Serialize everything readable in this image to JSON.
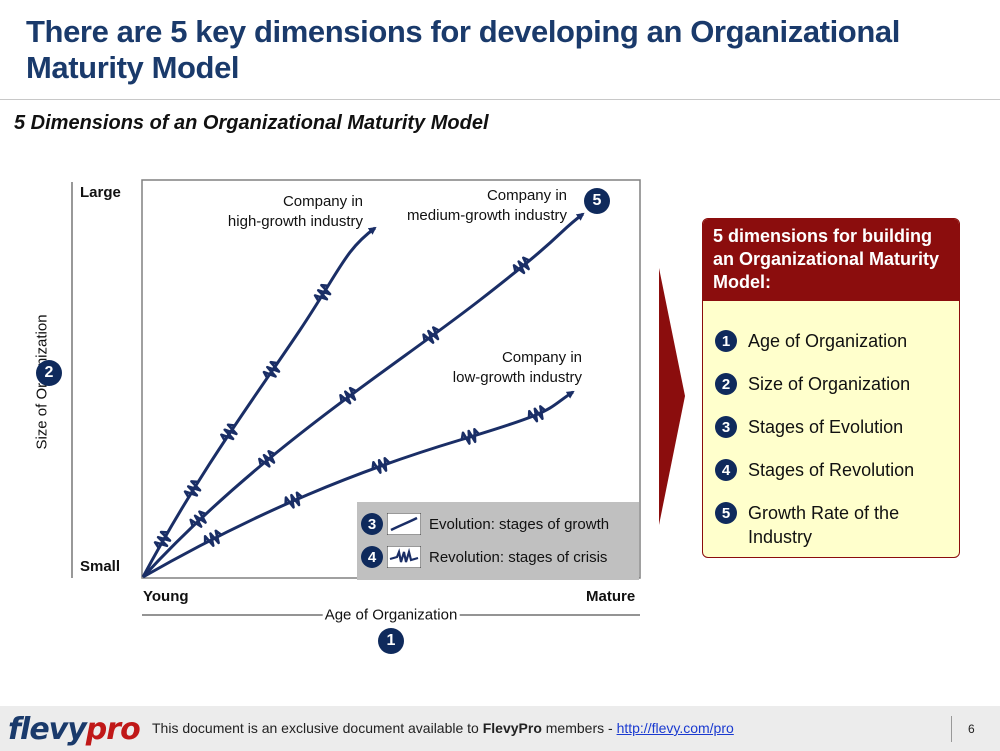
{
  "header": {
    "title": "There are 5 key dimensions for developing an Organizational Maturity Model",
    "subtitle": "5 Dimensions of an Organizational Maturity Model"
  },
  "diagram": {
    "y_axis": {
      "top_label": "Large",
      "bottom_label": "Small",
      "title": "Size of Organization",
      "badge": "2"
    },
    "x_axis": {
      "left_label": "Young",
      "right_label": "Mature",
      "title": "Age of Organization",
      "badge": "1"
    },
    "curves": [
      {
        "label_line1": "Company in",
        "label_line2": "high-growth industry"
      },
      {
        "label_line1": "Company in",
        "label_line2": "medium-growth industry",
        "badge": "5"
      },
      {
        "label_line1": "Company in",
        "label_line2": "low-growth industry"
      }
    ],
    "legend": [
      {
        "badge": "3",
        "icon": "smooth-line-icon",
        "text": "Evolution: stages of growth"
      },
      {
        "badge": "4",
        "icon": "zigzag-line-icon",
        "text": "Revolution: stages of crisis"
      }
    ],
    "colors": {
      "curve": "#1a2e66",
      "badge": "#0f2a5c",
      "arrow": "#8b0d0d"
    }
  },
  "panel": {
    "heading": "5 dimensions for building an Organizational Maturity Model:",
    "items": [
      {
        "num": "1",
        "text": "Age of Organization"
      },
      {
        "num": "2",
        "text": "Size of Organization"
      },
      {
        "num": "3",
        "text": "Stages of Evolution"
      },
      {
        "num": "4",
        "text": "Stages of Revolution"
      },
      {
        "num": "5",
        "text": "Growth Rate of the Industry"
      }
    ],
    "colors": {
      "header_bg": "#8b0d0d",
      "body_bg": "#ffffcc"
    }
  },
  "footer": {
    "logo_part1": "flevy",
    "logo_part2": "pro",
    "note_prefix": "This document is an exclusive document available to ",
    "note_brand": "FlevyPro",
    "note_mid": " members - ",
    "note_link": "http://flevy.com/pro",
    "page_number": "6"
  }
}
